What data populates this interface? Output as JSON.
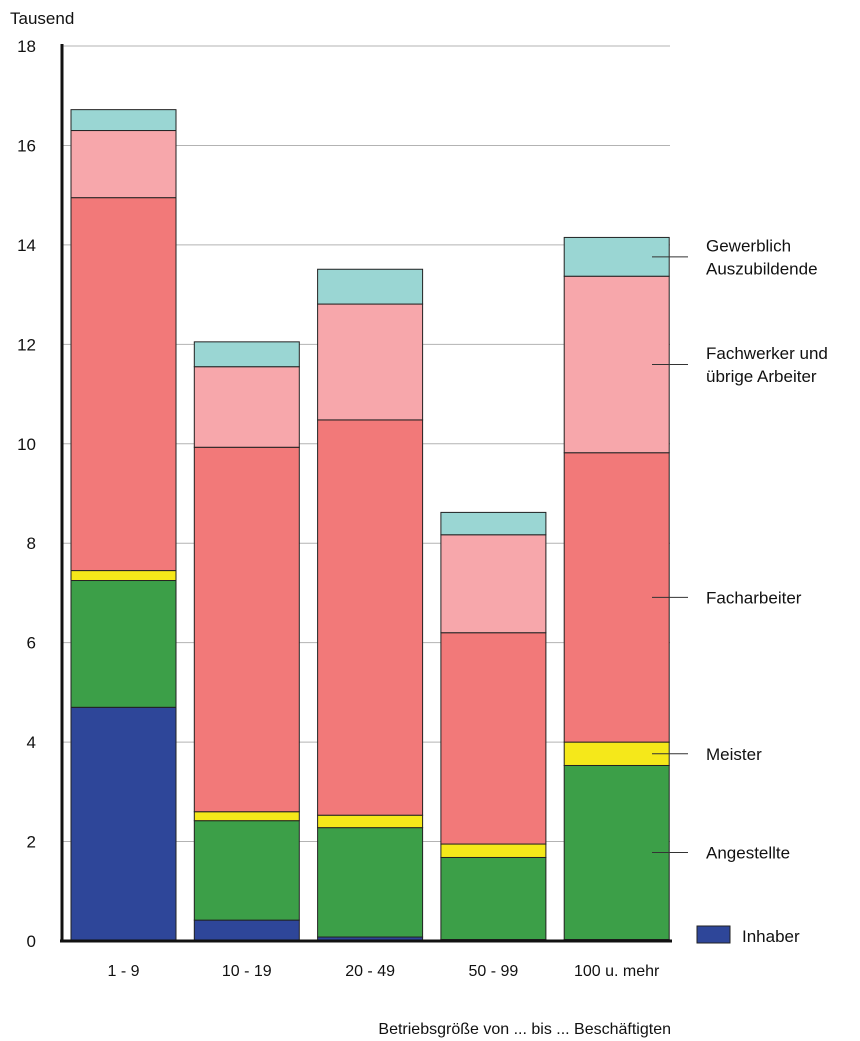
{
  "chart_data": {
    "type": "bar",
    "stacked": true,
    "unit_label": "Tausend",
    "xlabel": "Betriebsgröße von ... bis ... Beschäftigten",
    "ylabel": "",
    "ylim": [
      0,
      18
    ],
    "yticks": [
      "0",
      "2",
      "4",
      "6",
      "8",
      "10",
      "12",
      "14",
      "16",
      "18"
    ],
    "grid": true,
    "categories": [
      "1 - 9",
      "10 - 19",
      "20 - 49",
      "50 - 99",
      "100 u. mehr"
    ],
    "series": [
      {
        "name": "Inhaber",
        "color": "#2e4699",
        "values": [
          4.7,
          0.42,
          0.08,
          0.03,
          0.03
        ]
      },
      {
        "name": "Angestellte",
        "color": "#3c9f48",
        "values": [
          2.55,
          2.0,
          2.2,
          1.65,
          3.5
        ]
      },
      {
        "name": "Meister",
        "color": "#f5e81a",
        "values": [
          0.2,
          0.18,
          0.25,
          0.27,
          0.47
        ]
      },
      {
        "name": "Facharbeiter",
        "color": "#f27979",
        "values": [
          7.5,
          7.33,
          7.95,
          4.25,
          5.82
        ]
      },
      {
        "name": "Fachwerker und übrige Arbeiter",
        "label_lines": [
          "Fachwerker und",
          "übrige Arbeiter"
        ],
        "color": "#f7a7ab",
        "values": [
          1.35,
          1.62,
          2.33,
          1.97,
          3.55
        ]
      },
      {
        "name": "Gewerblich Auszubildende",
        "label_lines": [
          "Gewerblich",
          "Auszubildende"
        ],
        "color": "#9ad6d3",
        "values": [
          0.42,
          0.5,
          0.7,
          0.45,
          0.78
        ]
      }
    ],
    "legend": "right"
  }
}
